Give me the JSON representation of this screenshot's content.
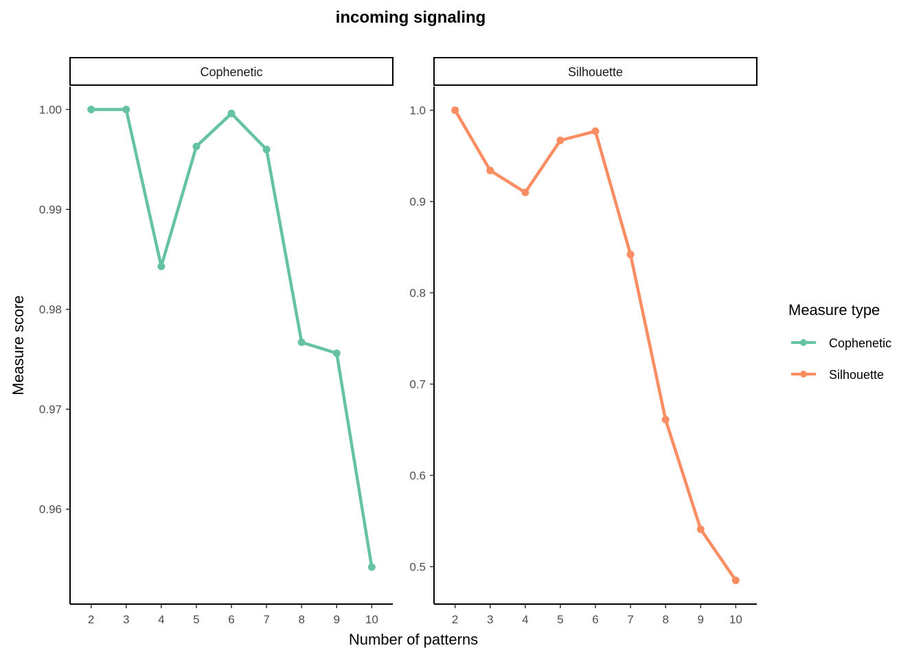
{
  "chart_data": {
    "type": "line",
    "title": "incoming signaling",
    "xlabel": "Number of patterns",
    "ylabel": "Measure score",
    "legend": {
      "title": "Measure type",
      "placement": "right",
      "entries": [
        "Cophenetic",
        "Silhouette"
      ]
    },
    "grid": false,
    "x": [
      2,
      3,
      4,
      5,
      6,
      7,
      8,
      9,
      10
    ],
    "x_ticks": [
      "2",
      "3",
      "4",
      "5",
      "6",
      "7",
      "8",
      "9",
      "10"
    ],
    "panels": [
      {
        "strip_label": "Cophenetic",
        "color": "#66c2a5",
        "ylim": [
          0.9505,
          1.0023
        ],
        "y_ticks": [
          {
            "value": 0.96,
            "label": "0.96"
          },
          {
            "value": 0.97,
            "label": "0.97"
          },
          {
            "value": 0.98,
            "label": "0.98"
          },
          {
            "value": 0.99,
            "label": "0.99"
          },
          {
            "value": 1.0,
            "label": "1.00"
          }
        ],
        "series": [
          {
            "name": "Cophenetic",
            "values": [
              1.0,
              1.0,
              0.9843,
              0.9963,
              0.9996,
              0.996,
              0.9767,
              0.9756,
              0.9542
            ]
          }
        ]
      },
      {
        "strip_label": "Silhouette",
        "color": "#fc8d62",
        "ylim": [
          0.459,
          1.026
        ],
        "y_ticks": [
          {
            "value": 0.5,
            "label": "0.5"
          },
          {
            "value": 0.6,
            "label": "0.6"
          },
          {
            "value": 0.7,
            "label": "0.7"
          },
          {
            "value": 0.8,
            "label": "0.8"
          },
          {
            "value": 0.9,
            "label": "0.9"
          },
          {
            "value": 1.0,
            "label": "1.0"
          }
        ],
        "series": [
          {
            "name": "Silhouette",
            "values": [
              1.0,
              0.934,
              0.91,
              0.967,
              0.977,
              0.842,
              0.661,
              0.541,
              0.485
            ]
          }
        ]
      }
    ]
  }
}
